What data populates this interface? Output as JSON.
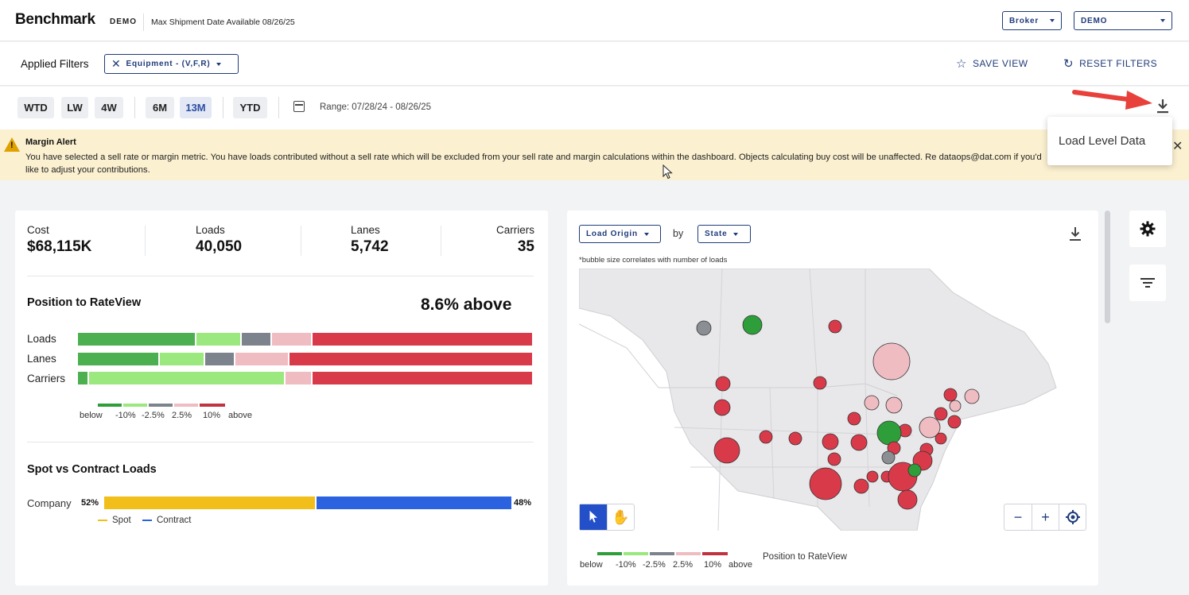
{
  "header": {
    "brand": "Benchmark",
    "brand_sub": "DEMO",
    "max_date": "Max Shipment Date Available 08/26/25",
    "role_select": "Broker",
    "account_select": "DEMO"
  },
  "filters": {
    "label": "Applied Filters",
    "equipment_chip": "Equipment - (V,F,R)",
    "save_view": "SAVE VIEW",
    "reset_filters": "RESET FILTERS"
  },
  "range": {
    "buttons": [
      "WTD",
      "LW",
      "4W",
      "6M",
      "13M",
      "YTD"
    ],
    "active": "13M",
    "text": "Range: 07/28/24 - 08/26/25"
  },
  "alert": {
    "title": "Margin Alert",
    "body": "You have selected a sell rate or margin metric. You have loads contributed without a sell rate which will be excluded from your sell rate and margin calculations within the dashboard. Objects calculating buy cost will be unaffected. Re dataops@dat.com if you'd like to adjust your contributions."
  },
  "popup": {
    "item": "Load Level Data"
  },
  "kpis": [
    {
      "label": "Cost",
      "value": "$68,115K"
    },
    {
      "label": "Loads",
      "value": "40,050"
    },
    {
      "label": "Lanes",
      "value": "5,742"
    },
    {
      "label": "Carriers",
      "value": "35"
    }
  ],
  "position": {
    "title": "Position to RateView",
    "summary": "8.6% above",
    "rows": [
      {
        "label": "Loads",
        "segments": [
          0.26,
          0.1,
          0.065,
          0.09,
          0.485
        ]
      },
      {
        "label": "Lanes",
        "segments": [
          0.18,
          0.1,
          0.065,
          0.12,
          0.535
        ]
      },
      {
        "label": "Carriers",
        "segments": [
          0.025,
          0.43,
          0.0,
          0.06,
          0.485
        ]
      }
    ],
    "legend": [
      "below",
      "-10%",
      "-2.5%",
      "2.5%",
      "10%",
      "above"
    ]
  },
  "spot_contract": {
    "title": "Spot vs Contract Loads",
    "row_label": "Company",
    "spot_pct": "52%",
    "contract_pct": "48%",
    "spot_share": 0.52,
    "legend_spot": "Spot",
    "legend_contract": "Contract"
  },
  "map": {
    "origin_select": "Load Origin",
    "by": "by",
    "group_select": "State",
    "note": "*bubble size correlates with number of loads",
    "legend_title": "Position to RateView",
    "legend": [
      "below",
      "-10%",
      "-2.5%",
      "2.5%",
      "10%",
      "above"
    ],
    "zoom_out": "−",
    "zoom_in": "+"
  },
  "colors": {
    "dark_green": "#2e9e3a",
    "green": "#4caf50",
    "light_green": "#9be87e",
    "gray": "#7c838c",
    "pink": "#efbcc2",
    "red": "#d93a4a",
    "spot": "#f2bf1a",
    "contract": "#2a62e0",
    "accent": "#1f3b7a"
  }
}
